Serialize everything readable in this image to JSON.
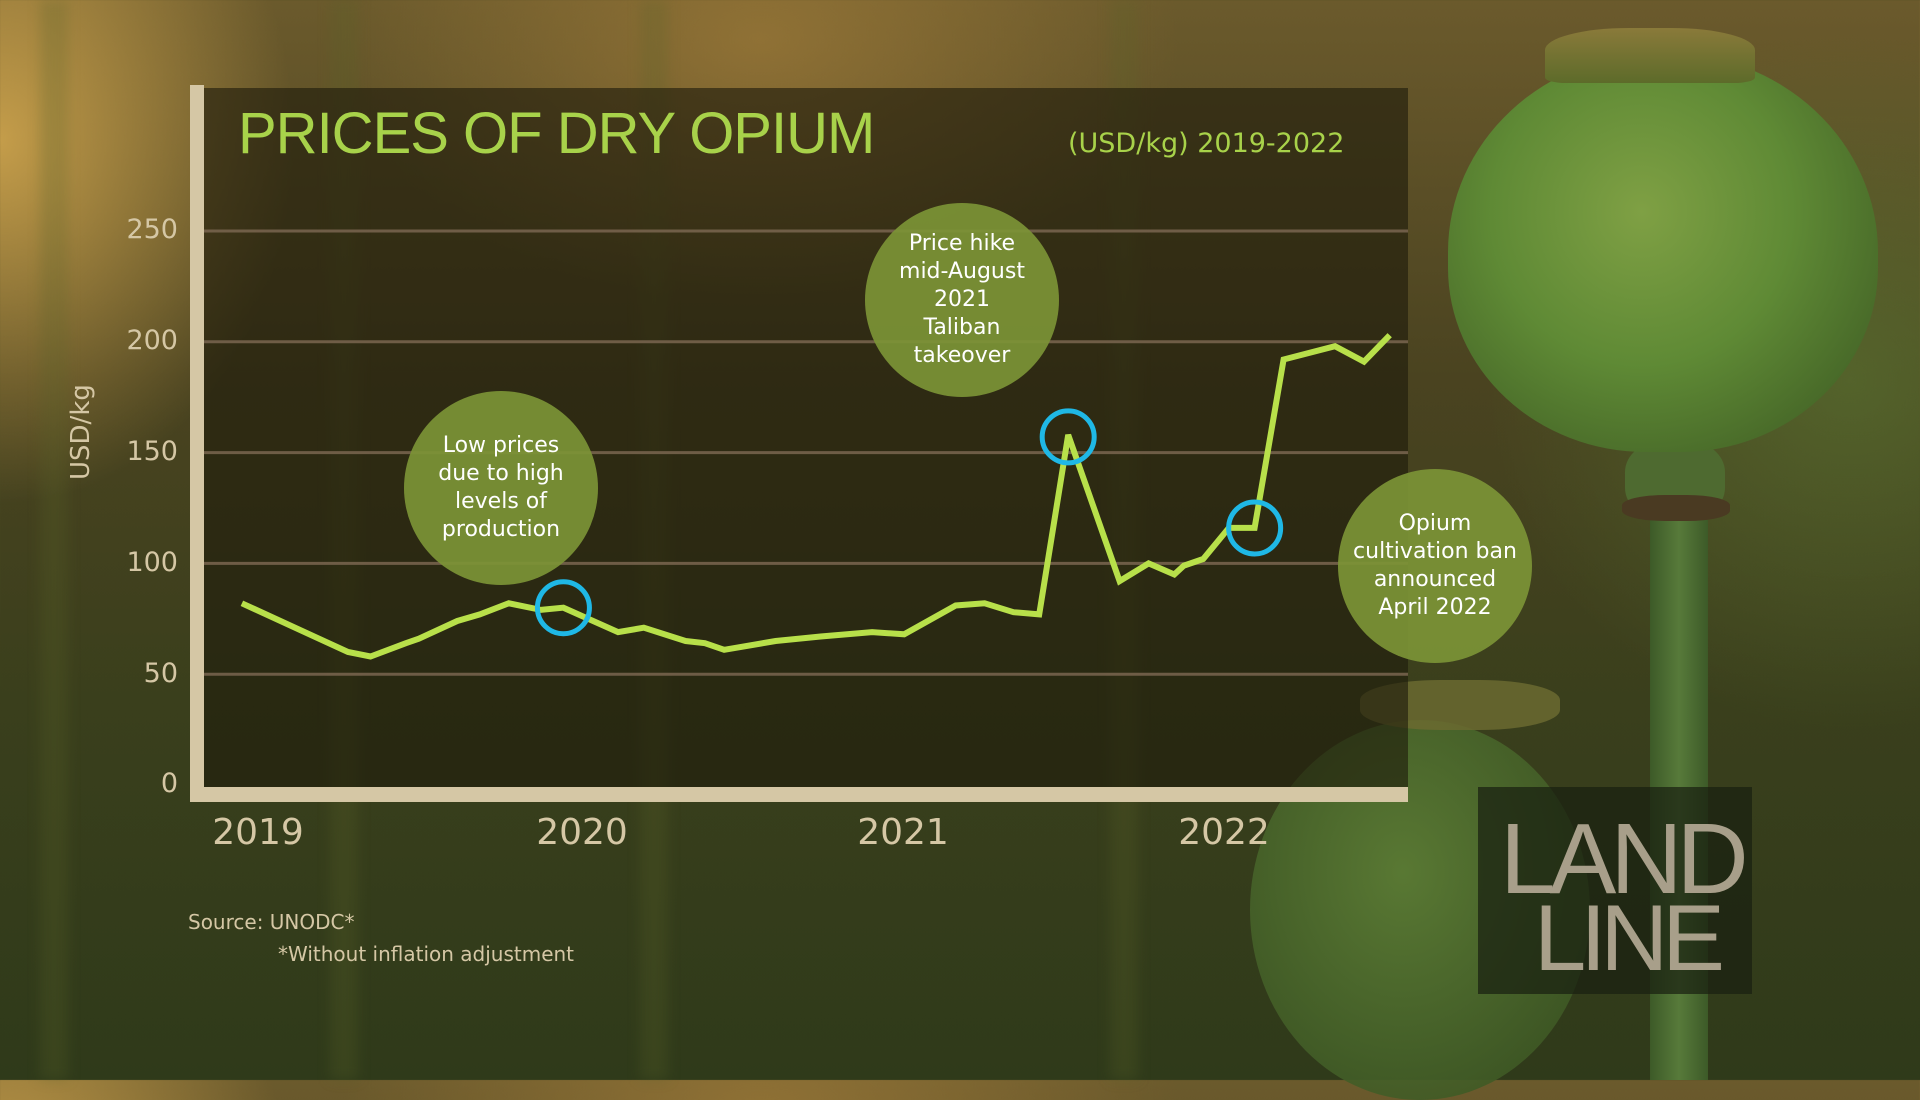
{
  "title": "PRICES OF DRY OPIUM",
  "subtitle": "(USD/kg)  2019-2022",
  "y_axis": {
    "label": "USD/kg",
    "ticks": [
      "250",
      "200",
      "150",
      "100",
      "50",
      "0"
    ]
  },
  "x_axis": {
    "ticks": [
      "2019",
      "2020",
      "2021",
      "2022"
    ]
  },
  "annotations": [
    {
      "id": "low-prices",
      "text": "Low prices\ndue to high\nlevels of\nproduction"
    },
    {
      "id": "price-hike",
      "text": "Price hike\nmid-August\n2021\nTaliban\ntakeover"
    },
    {
      "id": "ban",
      "text": "Opium\ncultivation ban\nannounced\nApril 2022"
    }
  ],
  "source": {
    "line1": "Source:  UNODC*",
    "line2": "*Without inflation adjustment"
  },
  "logo": {
    "line1": "LAND",
    "line2": "LINE"
  },
  "colors": {
    "line": "#b8e04a",
    "highlight": "#1fb8e6",
    "bubble": "#7c9436",
    "axis": "#d5c7a5",
    "title": "#a8d24a"
  },
  "chart_data": {
    "type": "line",
    "title": "PRICES OF DRY OPIUM",
    "subtitle": "(USD/kg) 2019-2022",
    "xlabel": "",
    "ylabel": "USD/kg",
    "ylim": [
      0,
      250
    ],
    "yticks": [
      0,
      50,
      100,
      150,
      200,
      250
    ],
    "xticks": [
      "2019",
      "2020",
      "2021",
      "2022"
    ],
    "grid": true,
    "series": [
      {
        "name": "Dry opium price (USD/kg)",
        "x": [
          2018.95,
          2019.28,
          2019.35,
          2019.46,
          2019.5,
          2019.62,
          2019.69,
          2019.78,
          2019.88,
          2019.95,
          2020.12,
          2020.2,
          2020.33,
          2020.39,
          2020.45,
          2020.61,
          2020.75,
          2020.91,
          2021.01,
          2021.17,
          2021.26,
          2021.35,
          2021.43,
          2021.52,
          2021.68,
          2021.77,
          2021.85,
          2021.88,
          2021.94,
          2022.02,
          2022.1,
          2022.19,
          2022.35,
          2022.44,
          2022.52
        ],
        "values": [
          82,
          60,
          58,
          64,
          66,
          74,
          77,
          82,
          79,
          80,
          69,
          71,
          65,
          64,
          61,
          65,
          67,
          69,
          68,
          81,
          82,
          78,
          77,
          158,
          92,
          100,
          95,
          99,
          102,
          116,
          116,
          192,
          198,
          191,
          203
        ]
      }
    ],
    "highlights": [
      {
        "x": 2019.95,
        "value": 80,
        "label": "Low prices due to high levels of production"
      },
      {
        "x": 2021.52,
        "value": 158,
        "label": "Price hike mid-August 2021 Taliban takeover"
      },
      {
        "x": 2022.1,
        "value": 116,
        "label": "Opium cultivation ban announced April 2022"
      }
    ]
  }
}
